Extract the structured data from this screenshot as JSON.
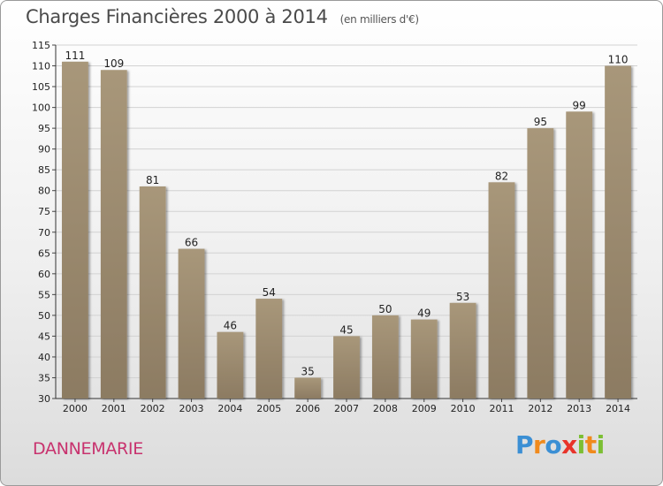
{
  "title": "Charges Financières 2000 à 2014",
  "unit_note": "(en milliers d'€)",
  "location": "DANNEMARIE",
  "brand": "Proxiti",
  "colors": {
    "bar": "#8c7b62",
    "bar_light": "#a8977a",
    "title": "#4a4a4a",
    "location": "#c8326e"
  },
  "chart_data": {
    "type": "bar",
    "title": "Charges Financières 2000 à 2014",
    "xlabel": "",
    "ylabel": "",
    "categories": [
      "2000",
      "2001",
      "2002",
      "2003",
      "2004",
      "2005",
      "2006",
      "2007",
      "2008",
      "2009",
      "2010",
      "2011",
      "2012",
      "2013",
      "2014"
    ],
    "values": [
      111,
      109,
      81,
      66,
      46,
      54,
      35,
      45,
      50,
      49,
      53,
      82,
      95,
      99,
      110
    ],
    "ylim": [
      30,
      115
    ],
    "yticks": [
      30,
      35,
      40,
      45,
      50,
      55,
      60,
      65,
      70,
      75,
      80,
      85,
      90,
      95,
      100,
      105,
      110,
      115
    ],
    "grid": true,
    "legend": "none"
  }
}
